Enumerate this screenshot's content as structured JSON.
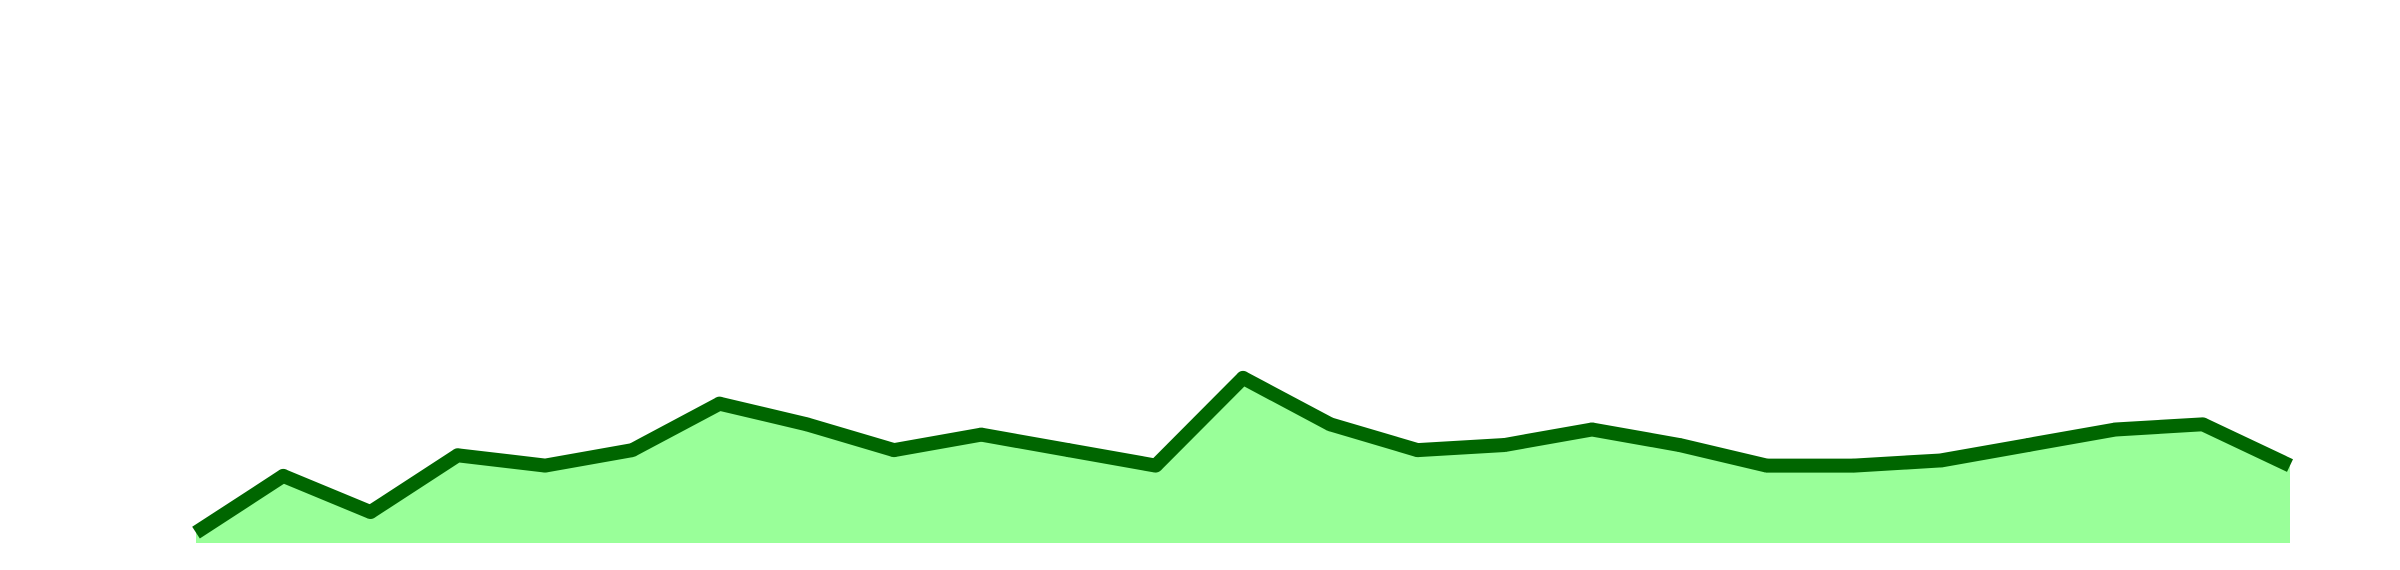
{
  "chart_data": {
    "type": "area",
    "title": "",
    "xlabel": "",
    "ylabel": "",
    "grid": false,
    "legend": "none",
    "x": [
      1,
      2,
      3,
      4,
      5,
      6,
      7,
      8,
      9,
      10,
      11,
      12,
      13,
      14,
      15,
      16,
      17,
      18,
      19,
      20,
      21,
      22,
      23,
      24,
      25
    ],
    "series": [
      {
        "values": [
          2,
          13,
          6,
          17,
          15,
          18,
          27,
          23,
          18,
          21,
          18,
          15,
          32,
          23,
          18,
          19,
          22,
          19,
          15,
          15,
          16,
          19,
          22,
          23,
          15
        ]
      }
    ],
    "ylim": [
      0,
      100
    ],
    "colors": {
      "fill": "#99ff99",
      "line": "#006600"
    }
  }
}
